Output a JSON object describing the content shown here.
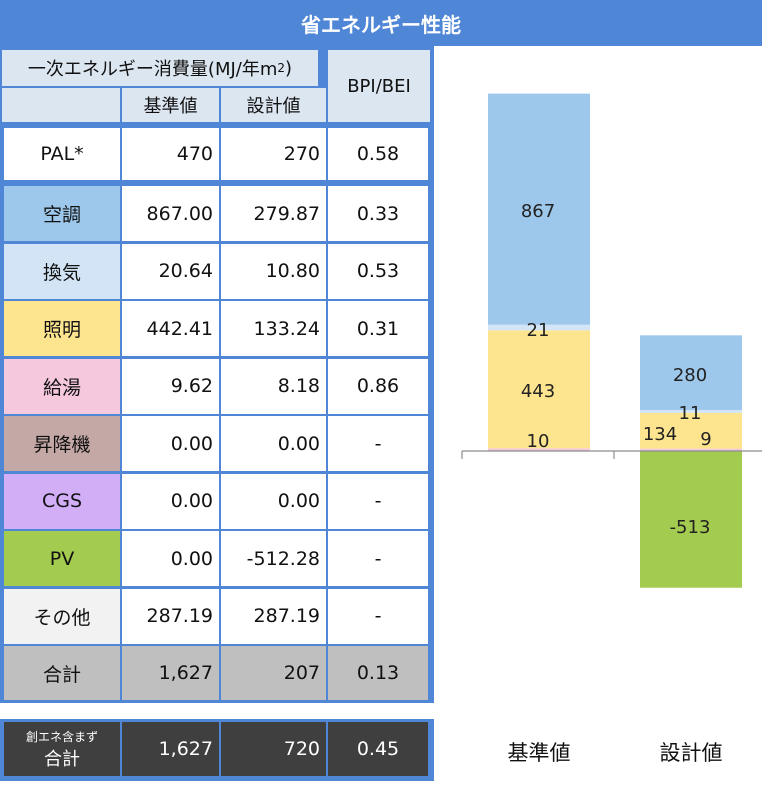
{
  "title": "省エネルギー性能",
  "table": {
    "header_main": "一次エネルギー消費量(MJ/年m",
    "header_sup": "2",
    "header_close": ")",
    "col_base": "基準値",
    "col_design": "設計値",
    "col_ratio": "BPI/BEI",
    "pal": {
      "label": "PAL*",
      "base": "470",
      "design": "270",
      "ratio": "0.58"
    },
    "rows": [
      {
        "label": "空調",
        "base": "867.00",
        "design": "279.87",
        "ratio": "0.33",
        "color": "#9dc8ec"
      },
      {
        "label": "換気",
        "base": "20.64",
        "design": "10.80",
        "ratio": "0.53",
        "color": "#d2e4f5"
      },
      {
        "label": "照明",
        "base": "442.41",
        "design": "133.24",
        "ratio": "0.31",
        "color": "#fde58f"
      },
      {
        "label": "給湯",
        "base": "9.62",
        "design": "8.18",
        "ratio": "0.86",
        "color": "#f6c8de"
      },
      {
        "label": "昇降機",
        "base": "0.00",
        "design": "0.00",
        "ratio": "-",
        "color": "#c4a8a6"
      },
      {
        "label": "CGS",
        "base": "0.00",
        "design": "0.00",
        "ratio": "-",
        "color": "#d2aef7"
      },
      {
        "label": "PV",
        "base": "0.00",
        "design": "-512.28",
        "ratio": "-",
        "color": "#a3cb4f"
      },
      {
        "label": "その他",
        "base": "287.19",
        "design": "287.19",
        "ratio": "-",
        "color": "#f2f2f2"
      }
    ],
    "total": {
      "label": "合計",
      "base": "1,627",
      "design": "207",
      "ratio": "0.13"
    },
    "total_ex": {
      "label_line1": "創エネ含まず",
      "label_line2": "合計",
      "base": "1,627",
      "design": "720",
      "ratio": "0.45"
    }
  },
  "chart_data": {
    "type": "bar",
    "stacked": true,
    "categories": [
      "基準値",
      "設計値"
    ],
    "series": [
      {
        "name": "空調",
        "values": [
          867,
          280
        ],
        "color": "#9dc8ec"
      },
      {
        "name": "換気",
        "values": [
          21,
          11
        ],
        "color": "#d2e4f5"
      },
      {
        "name": "照明",
        "values": [
          443,
          134
        ],
        "color": "#fde58f"
      },
      {
        "name": "給湯",
        "values": [
          10,
          9
        ],
        "color": "#f6c8de"
      },
      {
        "name": "PV",
        "values": [
          0,
          -513
        ],
        "color": "#a3cb4f"
      }
    ],
    "data_labels": [
      [
        "867",
        "280"
      ],
      [
        "21",
        "11"
      ],
      [
        "443",
        "134"
      ],
      [
        "10",
        "9"
      ],
      [
        "",
        "-513"
      ]
    ]
  }
}
